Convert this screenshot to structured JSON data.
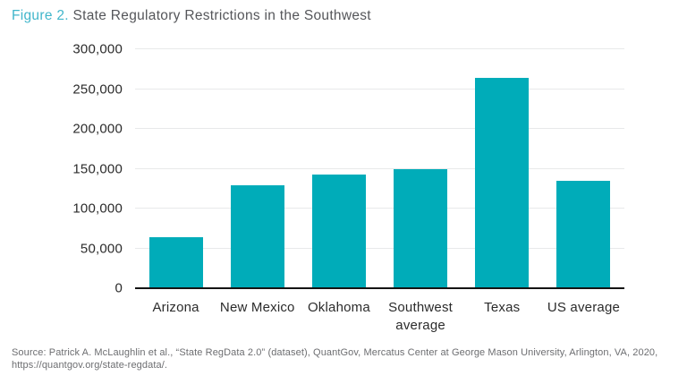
{
  "title": {
    "prefix": "Figure 2.",
    "text": " State Regulatory Restrictions in the Southwest"
  },
  "source": {
    "line1": "Source: Patrick A. McLaughlin et al., “State RegData 2.0” (dataset), QuantGov, Mercatus Center at George Mason University, Arlington, VA, 2020,",
    "line2": "https://quantgov.org/state-regdata/."
  },
  "colors": {
    "bar": "#00ACB9",
    "title_accent": "#41B6CB",
    "title_text": "#55565A",
    "tick_text": "#2B2B2B",
    "gridline": "#E8E9EA",
    "axis_line": "#141414",
    "source_text": "#6D6E71"
  },
  "chart_data": {
    "type": "bar",
    "title": "Figure 2. State Regulatory Restrictions in the Southwest",
    "categories": [
      "Arizona",
      "New Mexico",
      "Oklahoma",
      "Southwest average",
      "Texas",
      "US average"
    ],
    "values": [
      64000,
      129000,
      143000,
      150000,
      264000,
      135000
    ],
    "xlabel": "",
    "ylabel": "",
    "ylim": [
      0,
      300000
    ],
    "yticks": [
      {
        "value": 0,
        "label": "0"
      },
      {
        "value": 50000,
        "label": "50,000"
      },
      {
        "value": 100000,
        "label": "100,000"
      },
      {
        "value": 150000,
        "label": "150,000"
      },
      {
        "value": 200000,
        "label": "200,000"
      },
      {
        "value": 250000,
        "label": "250,000"
      },
      {
        "value": 300000,
        "label": "300,000"
      }
    ],
    "grid": true,
    "legend": false,
    "bar_color": "#00ACB9"
  }
}
